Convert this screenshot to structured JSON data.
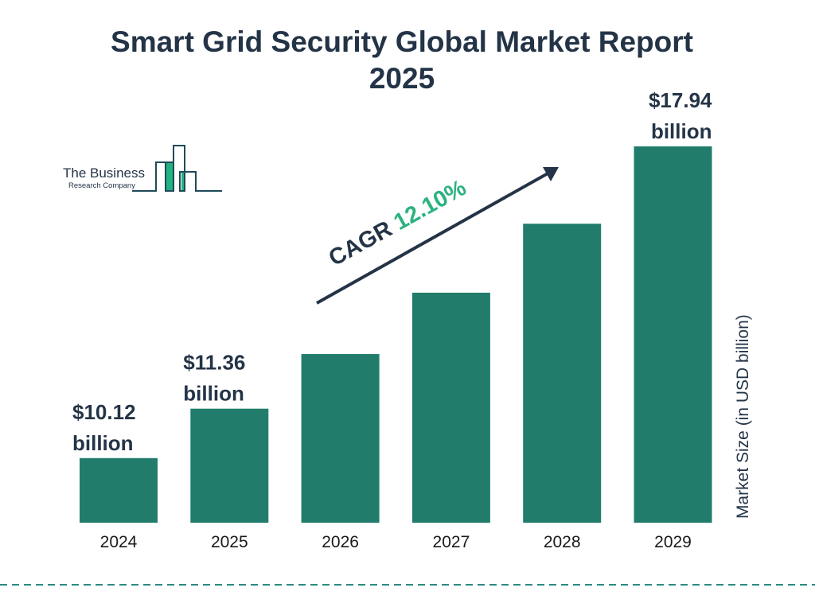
{
  "chart_data": {
    "type": "bar",
    "title": "Smart Grid Security Global Market Report 2025",
    "ylabel": "Market Size (in USD billion)",
    "xlabel": "",
    "categories": [
      "2024",
      "2025",
      "2026",
      "2027",
      "2028",
      "2029"
    ],
    "values": [
      10.12,
      11.36,
      12.73,
      14.27,
      16.0,
      17.94
    ],
    "data_labels": [
      {
        "index": 0,
        "line1": "$10.12",
        "line2": "billion"
      },
      {
        "index": 1,
        "line1": "$11.36",
        "line2": "billion"
      },
      {
        "index": 5,
        "line1": "$17.94",
        "line2": "billion"
      }
    ],
    "ylim": [
      8.5,
      18.0
    ],
    "grid": false,
    "bar_color": "#217c6b",
    "annotation": {
      "prefix": "CAGR ",
      "value": "12.10%",
      "value_color": "#2bb37f"
    }
  },
  "logo": {
    "line1": "The Business",
    "line2": "Research Company"
  }
}
